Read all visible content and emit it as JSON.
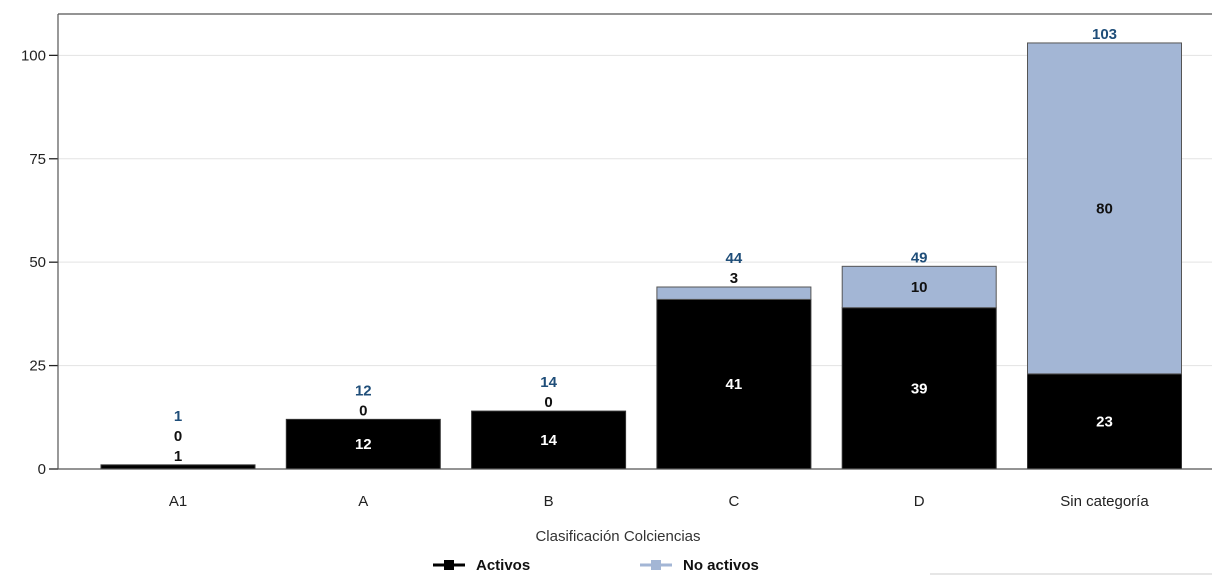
{
  "chart_data": {
    "type": "bar",
    "stacked": true,
    "categories": [
      "A1",
      "A",
      "B",
      "C",
      "D",
      "Sin categoría"
    ],
    "series": [
      {
        "name": "Activos",
        "values": [
          1,
          12,
          14,
          41,
          39,
          23
        ],
        "color": "#000000",
        "label_color": "#111111"
      },
      {
        "name": "No activos",
        "values": [
          0,
          0,
          0,
          3,
          10,
          80
        ],
        "color": "#a3b6d5",
        "label_color": "#111111"
      }
    ],
    "totals": [
      1,
      12,
      14,
      44,
      49,
      103
    ],
    "total_color": "#1f4e79",
    "xlabel": "Clasificación Colciencias",
    "ylabel": "",
    "ylim": [
      0,
      110
    ],
    "yticks": [
      0,
      25,
      50,
      75,
      100
    ],
    "grid": true,
    "legend_position": "bottom"
  }
}
